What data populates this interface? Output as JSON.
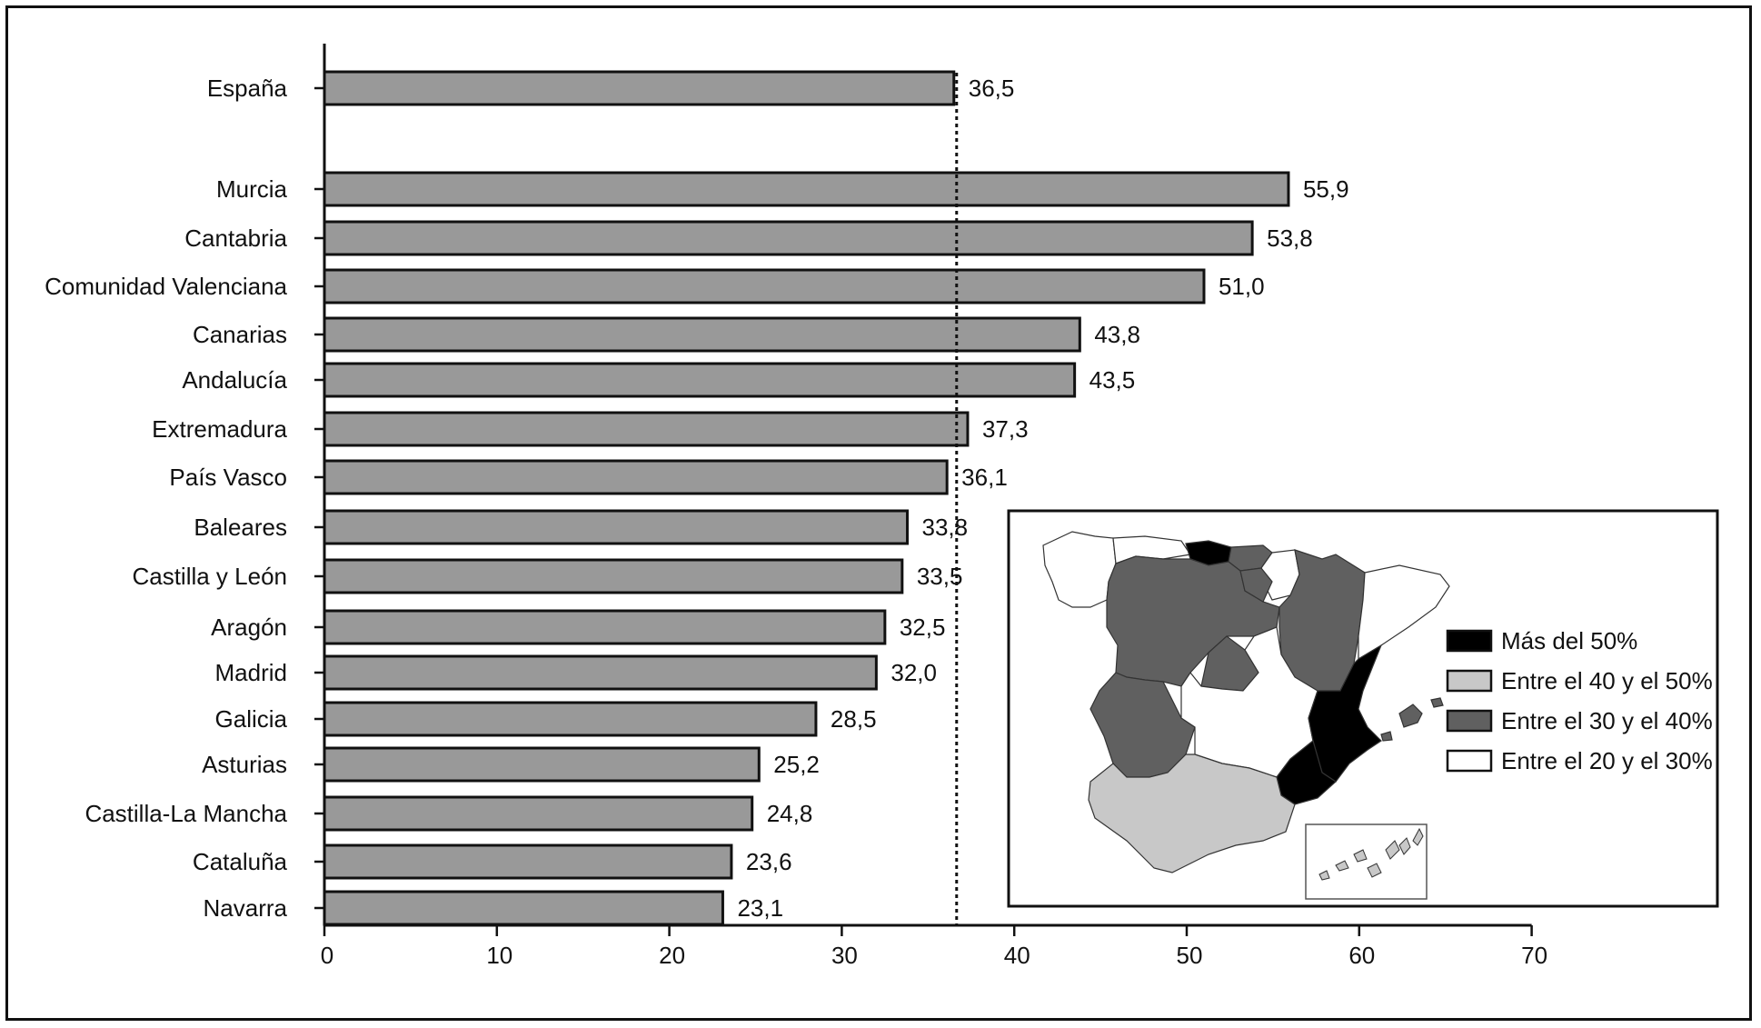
{
  "chart_data": {
    "type": "bar",
    "orientation": "horizontal",
    "categories": [
      "España",
      "Murcia",
      "Cantabria",
      "Comunidad Valenciana",
      "Canarias",
      "Andalucía",
      "Extremadura",
      "País Vasco",
      "Baleares",
      "Castilla y León",
      "Aragón",
      "Madrid",
      "Galicia",
      "Asturias",
      "Castilla-La Mancha",
      "Cataluña",
      "Navarra"
    ],
    "values": [
      36.5,
      55.9,
      53.8,
      51.0,
      43.8,
      43.5,
      37.3,
      36.1,
      33.8,
      33.5,
      32.5,
      32.0,
      28.5,
      25.2,
      24.8,
      23.6,
      23.1
    ],
    "value_labels": [
      "36,5",
      "55,9",
      "53,8",
      "51,0",
      "43,8",
      "43,5",
      "37,3",
      "36,1",
      "33,8",
      "33,5",
      "32,5",
      "32,0",
      "28,5",
      "25,2",
      "24,8",
      "23,6",
      "23,1"
    ],
    "reference_line": {
      "value": 36.5,
      "style": "dotted"
    },
    "xlim": [
      0,
      70
    ],
    "x_ticks": [
      "0",
      "10",
      "20",
      "30",
      "40",
      "50",
      "60",
      "70"
    ],
    "title": "",
    "xlabel": "",
    "ylabel": "",
    "grid": false,
    "bar_color": "#999999",
    "inset_map": {
      "placement": "bottom-right",
      "legend": [
        {
          "label": "Más del 50%",
          "color": "#000000"
        },
        {
          "label": "Entre el 40 y el 50%",
          "color": "#c8c8c8"
        },
        {
          "label": "Entre el 30 y el 40%",
          "color": "#606060"
        },
        {
          "label": "Entre el 20 y el 30%",
          "color": "#ffffff"
        }
      ]
    }
  }
}
